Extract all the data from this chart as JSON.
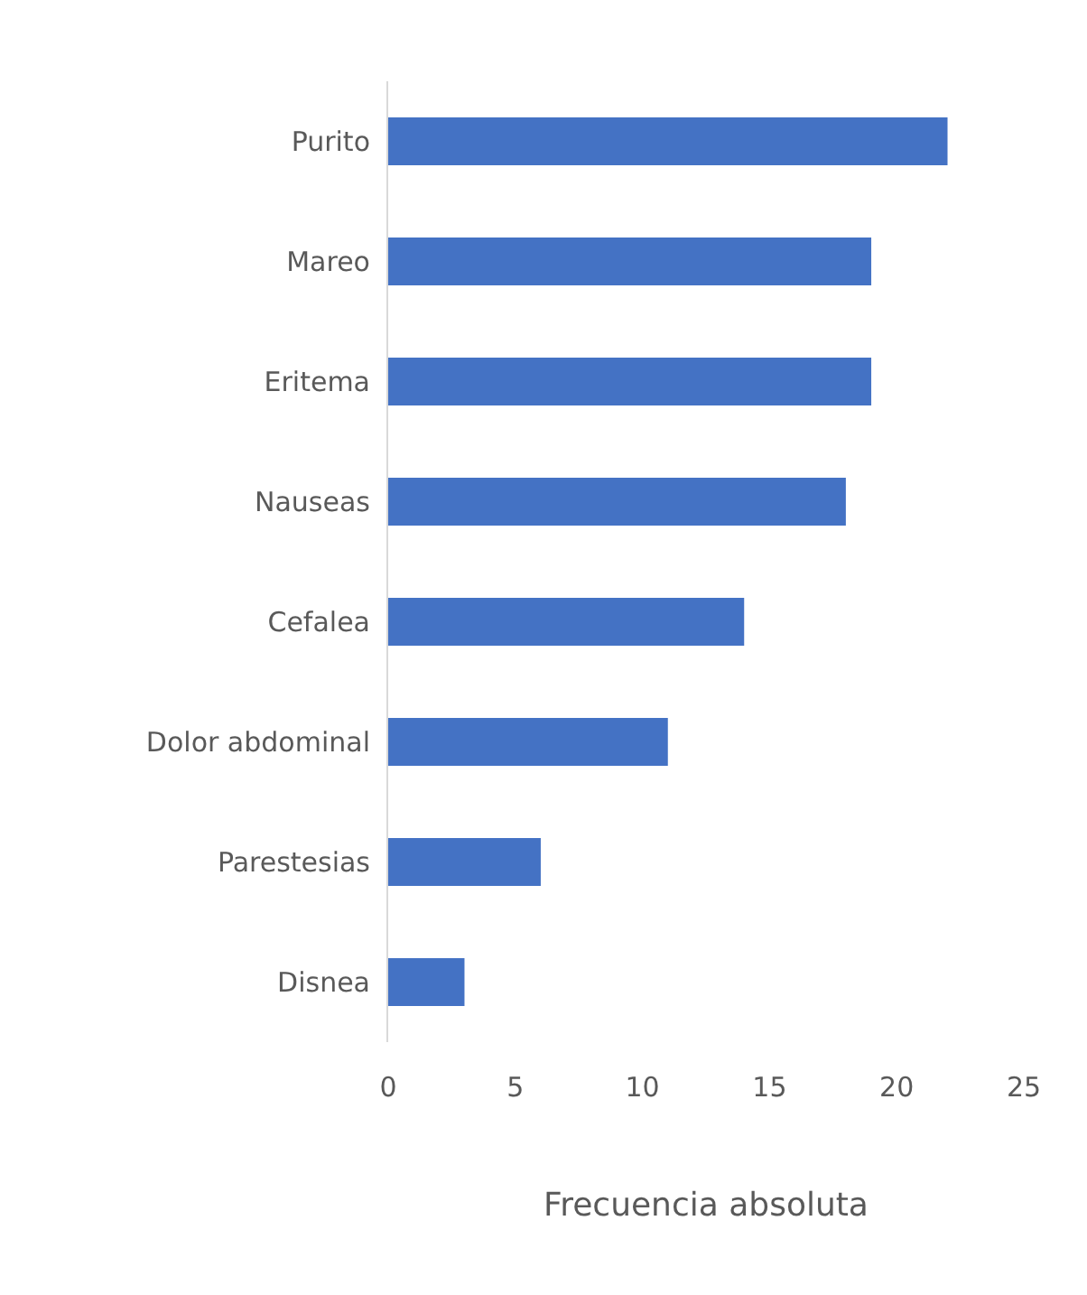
{
  "chart_data": {
    "type": "bar",
    "orientation": "horizontal",
    "xlabel": "Frecuencia absoluta",
    "categories": [
      "Purito",
      "Mareo",
      "Eritema",
      "Nauseas",
      "Cefalea",
      "Dolor abdominal",
      "Parestesias",
      "Disnea"
    ],
    "values": [
      22,
      19,
      19,
      18,
      14,
      11,
      6,
      3
    ],
    "color": "#4472c4",
    "xlim": [
      0,
      25
    ],
    "xticks": [
      0,
      5,
      10,
      15,
      20,
      25
    ],
    "grid": false
  }
}
